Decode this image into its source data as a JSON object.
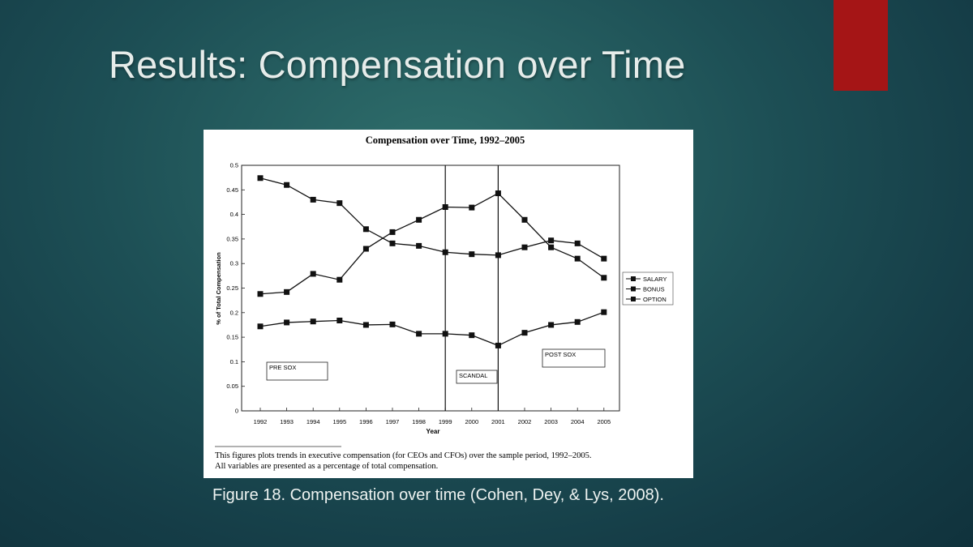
{
  "slide": {
    "title": "Results: Compensation over Time",
    "caption": "Figure 18. Compensation over time (Cohen, Dey, & Lys, 2008).",
    "accent_color": "#a51516"
  },
  "figure": {
    "note_line1": "This figures plots trends in executive compensation (for CEOs and CFOs) over the sample period, 1992–2005.",
    "note_line2": "All variables are presented as a percentage of total compensation."
  },
  "chart_data": {
    "type": "line",
    "title": "Compensation over Time, 1992–2005",
    "xlabel": "Year",
    "ylabel": "% of Total Compensation",
    "x": [
      "1992",
      "1993",
      "1994",
      "1995",
      "1996",
      "1997",
      "1998",
      "1999",
      "2000",
      "2001",
      "2002",
      "2003",
      "2004",
      "2005"
    ],
    "ylim": [
      0,
      0.5
    ],
    "yticks": [
      "0",
      "0.05",
      "0.1",
      "0.15",
      "0.2",
      "0.25",
      "0.3",
      "0.35",
      "0.4",
      "0.45",
      "0.5"
    ],
    "series": [
      {
        "name": "SALARY",
        "values": [
          0.474,
          0.46,
          0.43,
          0.423,
          0.37,
          0.341,
          0.336,
          0.323,
          0.319,
          0.317,
          0.333,
          0.347,
          0.341,
          0.31
        ]
      },
      {
        "name": "BONUS",
        "values": [
          0.172,
          0.18,
          0.182,
          0.184,
          0.175,
          0.176,
          0.157,
          0.157,
          0.154,
          0.133,
          0.159,
          0.175,
          0.181,
          0.201
        ]
      },
      {
        "name": "OPTION",
        "values": [
          0.238,
          0.242,
          0.279,
          0.267,
          0.33,
          0.364,
          0.389,
          0.415,
          0.414,
          0.443,
          0.389,
          0.333,
          0.31,
          0.271
        ]
      }
    ],
    "vertical_lines_at": [
      "1999",
      "2001"
    ],
    "annotations": [
      {
        "text": "PRE SOX"
      },
      {
        "text": "SCANDAL"
      },
      {
        "text": "POST SOX"
      }
    ],
    "legend_position": "right",
    "grid": false
  }
}
